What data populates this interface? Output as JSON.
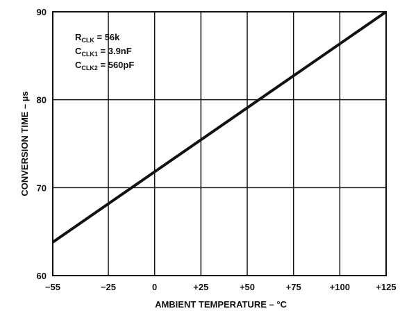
{
  "chart_data": {
    "type": "line",
    "title": "",
    "xlabel": "AMBIENT TEMPERATURE – °C",
    "ylabel": "CONVERSION TIME – µs",
    "xlim": [
      -55,
      125
    ],
    "ylim": [
      60,
      90
    ],
    "x_ticks": [
      -55,
      -25,
      0,
      25,
      50,
      75,
      100,
      125
    ],
    "x_tick_labels": [
      "−55",
      "−25",
      "0",
      "+25",
      "+50",
      "+75",
      "+100",
      "+125"
    ],
    "y_ticks": [
      60,
      70,
      80,
      90
    ],
    "y_tick_labels": [
      "60",
      "70",
      "80",
      "90"
    ],
    "grid": true,
    "series": [
      {
        "x": [
          -55,
          125
        ],
        "y": [
          63.8,
          90.0
        ]
      }
    ],
    "annotations": [
      {
        "main": "R",
        "sub": "CLK",
        "rest": " = 56k"
      },
      {
        "main": "C",
        "sub": "CLK1",
        "rest": " = 3.9nF"
      },
      {
        "main": "C",
        "sub": "CLK2",
        "rest": " = 560pF"
      }
    ]
  }
}
